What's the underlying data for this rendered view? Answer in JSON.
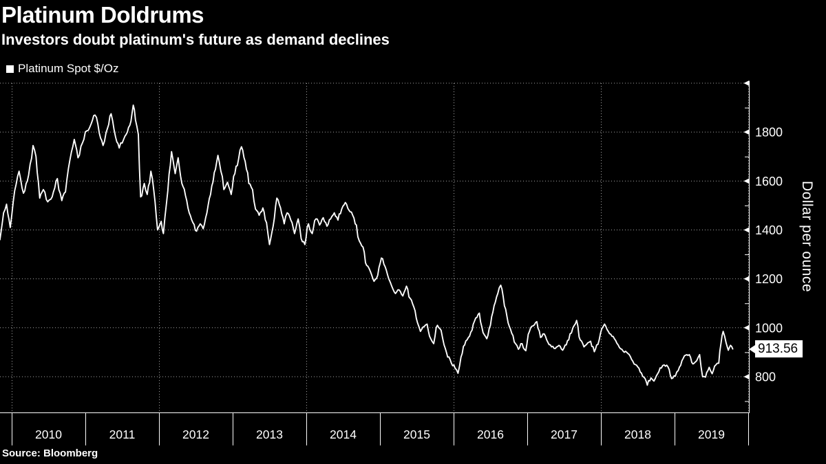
{
  "header": {
    "title": "Platinum Doldrums",
    "subtitle": "Investors doubt platinum's future as demand declines"
  },
  "source": {
    "label": "Source: Bloomberg"
  },
  "colors": {
    "background": "#000000",
    "text": "#ffffff",
    "line": "#ffffff",
    "grid": "#a8a8a8",
    "axis": "#ffffff",
    "callout_bg": "#ffffff",
    "callout_text": "#000000"
  },
  "chart_data": {
    "type": "line",
    "title": "Platinum Doldrums",
    "subtitle": "Investors doubt platinum's future as demand declines",
    "legend_label": "Platinum Spot $/Oz",
    "legend_position": "top-left",
    "ylabel": "Dollar per ounce",
    "xlabel": "",
    "x_tick_years": [
      2010,
      2011,
      2012,
      2013,
      2014,
      2015,
      2016,
      2017,
      2018,
      2019
    ],
    "y_ticks_labeled": [
      800,
      1000,
      1200,
      1400,
      1600,
      1800
    ],
    "y_minor_ticks": [
      700,
      900,
      1100,
      1300,
      1500,
      1700,
      1900
    ],
    "grid_y_values": [
      800,
      1000,
      1200,
      1400,
      1600,
      1800,
      2000
    ],
    "grid_x_years": [
      2010,
      2012,
      2014,
      2016,
      2018,
      2020
    ],
    "x_range": [
      2009.84,
      2020.03
    ],
    "y_range": [
      655,
      2010
    ],
    "y_axis_top_value": 2000,
    "grid": true,
    "last_price": 913.56,
    "last_price_label": "913.56",
    "source": "Bloomberg",
    "series": [
      {
        "name": "Platinum Spot $/Oz",
        "color": "#ffffff",
        "points": [
          [
            2009.84,
            1360
          ],
          [
            2009.89,
            1470
          ],
          [
            2009.93,
            1505
          ],
          [
            2009.98,
            1410
          ],
          [
            2010.04,
            1560
          ],
          [
            2010.1,
            1640
          ],
          [
            2010.16,
            1550
          ],
          [
            2010.23,
            1625
          ],
          [
            2010.29,
            1745
          ],
          [
            2010.33,
            1700
          ],
          [
            2010.38,
            1530
          ],
          [
            2010.43,
            1565
          ],
          [
            2010.49,
            1515
          ],
          [
            2010.55,
            1535
          ],
          [
            2010.62,
            1610
          ],
          [
            2010.68,
            1520
          ],
          [
            2010.73,
            1555
          ],
          [
            2010.79,
            1685
          ],
          [
            2010.85,
            1770
          ],
          [
            2010.9,
            1695
          ],
          [
            2010.96,
            1755
          ],
          [
            2011.02,
            1805
          ],
          [
            2011.08,
            1835
          ],
          [
            2011.13,
            1870
          ],
          [
            2011.19,
            1795
          ],
          [
            2011.24,
            1745
          ],
          [
            2011.3,
            1815
          ],
          [
            2011.35,
            1875
          ],
          [
            2011.41,
            1780
          ],
          [
            2011.46,
            1735
          ],
          [
            2011.52,
            1770
          ],
          [
            2011.57,
            1800
          ],
          [
            2011.62,
            1845
          ],
          [
            2011.65,
            1910
          ],
          [
            2011.68,
            1850
          ],
          [
            2011.72,
            1790
          ],
          [
            2011.75,
            1535
          ],
          [
            2011.8,
            1590
          ],
          [
            2011.84,
            1545
          ],
          [
            2011.89,
            1640
          ],
          [
            2011.93,
            1560
          ],
          [
            2011.98,
            1400
          ],
          [
            2012.03,
            1435
          ],
          [
            2012.06,
            1385
          ],
          [
            2012.12,
            1560
          ],
          [
            2012.17,
            1720
          ],
          [
            2012.22,
            1630
          ],
          [
            2012.26,
            1695
          ],
          [
            2012.31,
            1590
          ],
          [
            2012.36,
            1540
          ],
          [
            2012.41,
            1470
          ],
          [
            2012.46,
            1430
          ],
          [
            2012.51,
            1395
          ],
          [
            2012.56,
            1425
          ],
          [
            2012.6,
            1405
          ],
          [
            2012.65,
            1470
          ],
          [
            2012.7,
            1545
          ],
          [
            2012.75,
            1635
          ],
          [
            2012.8,
            1705
          ],
          [
            2012.84,
            1640
          ],
          [
            2012.88,
            1565
          ],
          [
            2012.93,
            1595
          ],
          [
            2012.98,
            1545
          ],
          [
            2013.03,
            1630
          ],
          [
            2013.08,
            1690
          ],
          [
            2013.12,
            1740
          ],
          [
            2013.17,
            1680
          ],
          [
            2013.22,
            1590
          ],
          [
            2013.27,
            1565
          ],
          [
            2013.31,
            1485
          ],
          [
            2013.36,
            1460
          ],
          [
            2013.41,
            1490
          ],
          [
            2013.46,
            1430
          ],
          [
            2013.5,
            1340
          ],
          [
            2013.55,
            1415
          ],
          [
            2013.6,
            1530
          ],
          [
            2013.65,
            1490
          ],
          [
            2013.7,
            1425
          ],
          [
            2013.74,
            1470
          ],
          [
            2013.79,
            1440
          ],
          [
            2013.84,
            1385
          ],
          [
            2013.89,
            1445
          ],
          [
            2013.93,
            1365
          ],
          [
            2013.98,
            1340
          ],
          [
            2014.03,
            1425
          ],
          [
            2014.08,
            1385
          ],
          [
            2014.13,
            1445
          ],
          [
            2014.18,
            1420
          ],
          [
            2014.23,
            1450
          ],
          [
            2014.28,
            1415
          ],
          [
            2014.33,
            1445
          ],
          [
            2014.38,
            1470
          ],
          [
            2014.43,
            1440
          ],
          [
            2014.48,
            1485
          ],
          [
            2014.53,
            1512
          ],
          [
            2014.58,
            1480
          ],
          [
            2014.63,
            1460
          ],
          [
            2014.68,
            1420
          ],
          [
            2014.72,
            1355
          ],
          [
            2014.77,
            1330
          ],
          [
            2014.82,
            1255
          ],
          [
            2014.87,
            1230
          ],
          [
            2014.92,
            1190
          ],
          [
            2014.97,
            1215
          ],
          [
            2015.02,
            1285
          ],
          [
            2015.07,
            1250
          ],
          [
            2015.12,
            1200
          ],
          [
            2015.16,
            1170
          ],
          [
            2015.21,
            1140
          ],
          [
            2015.26,
            1155
          ],
          [
            2015.31,
            1130
          ],
          [
            2015.36,
            1170
          ],
          [
            2015.41,
            1120
          ],
          [
            2015.46,
            1085
          ],
          [
            2015.51,
            1020
          ],
          [
            2015.55,
            985
          ],
          [
            2015.6,
            1005
          ],
          [
            2015.64,
            1015
          ],
          [
            2015.69,
            955
          ],
          [
            2015.73,
            935
          ],
          [
            2015.78,
            1010
          ],
          [
            2015.83,
            990
          ],
          [
            2015.87,
            930
          ],
          [
            2015.92,
            880
          ],
          [
            2015.97,
            855
          ],
          [
            2016.02,
            835
          ],
          [
            2016.06,
            814
          ],
          [
            2016.1,
            880
          ],
          [
            2016.15,
            930
          ],
          [
            2016.2,
            960
          ],
          [
            2016.25,
            990
          ],
          [
            2016.3,
            1040
          ],
          [
            2016.35,
            1060
          ],
          [
            2016.4,
            980
          ],
          [
            2016.45,
            955
          ],
          [
            2016.5,
            1010
          ],
          [
            2016.55,
            1090
          ],
          [
            2016.6,
            1140
          ],
          [
            2016.64,
            1174
          ],
          [
            2016.69,
            1090
          ],
          [
            2016.74,
            1020
          ],
          [
            2016.79,
            977
          ],
          [
            2016.84,
            935
          ],
          [
            2016.88,
            912
          ],
          [
            2016.93,
            935
          ],
          [
            2016.98,
            906
          ],
          [
            2017.03,
            985
          ],
          [
            2017.08,
            1008
          ],
          [
            2017.13,
            1025
          ],
          [
            2017.18,
            960
          ],
          [
            2017.23,
            975
          ],
          [
            2017.28,
            940
          ],
          [
            2017.33,
            922
          ],
          [
            2017.38,
            915
          ],
          [
            2017.43,
            928
          ],
          [
            2017.48,
            908
          ],
          [
            2017.53,
            930
          ],
          [
            2017.58,
            975
          ],
          [
            2017.62,
            1000
          ],
          [
            2017.67,
            1030
          ],
          [
            2017.72,
            950
          ],
          [
            2017.77,
            922
          ],
          [
            2017.82,
            938
          ],
          [
            2017.86,
            945
          ],
          [
            2017.91,
            902
          ],
          [
            2017.96,
            932
          ],
          [
            2018.01,
            995
          ],
          [
            2018.05,
            1015
          ],
          [
            2018.1,
            985
          ],
          [
            2018.15,
            965
          ],
          [
            2018.2,
            948
          ],
          [
            2018.25,
            920
          ],
          [
            2018.3,
            905
          ],
          [
            2018.35,
            900
          ],
          [
            2018.4,
            882
          ],
          [
            2018.45,
            852
          ],
          [
            2018.5,
            840
          ],
          [
            2018.55,
            815
          ],
          [
            2018.6,
            792
          ],
          [
            2018.63,
            765
          ],
          [
            2018.68,
            795
          ],
          [
            2018.72,
            782
          ],
          [
            2018.77,
            812
          ],
          [
            2018.82,
            835
          ],
          [
            2018.86,
            848
          ],
          [
            2018.91,
            840
          ],
          [
            2018.96,
            792
          ],
          [
            2019.01,
            802
          ],
          [
            2019.05,
            825
          ],
          [
            2019.1,
            865
          ],
          [
            2019.15,
            888
          ],
          [
            2019.2,
            890
          ],
          [
            2019.25,
            852
          ],
          [
            2019.3,
            865
          ],
          [
            2019.34,
            890
          ],
          [
            2019.38,
            800
          ],
          [
            2019.42,
            798
          ],
          [
            2019.47,
            838
          ],
          [
            2019.51,
            812
          ],
          [
            2019.56,
            848
          ],
          [
            2019.6,
            855
          ],
          [
            2019.63,
            935
          ],
          [
            2019.66,
            985
          ],
          [
            2019.7,
            938
          ],
          [
            2019.73,
            908
          ],
          [
            2019.76,
            928
          ],
          [
            2019.79,
            913.56
          ]
        ]
      }
    ]
  }
}
